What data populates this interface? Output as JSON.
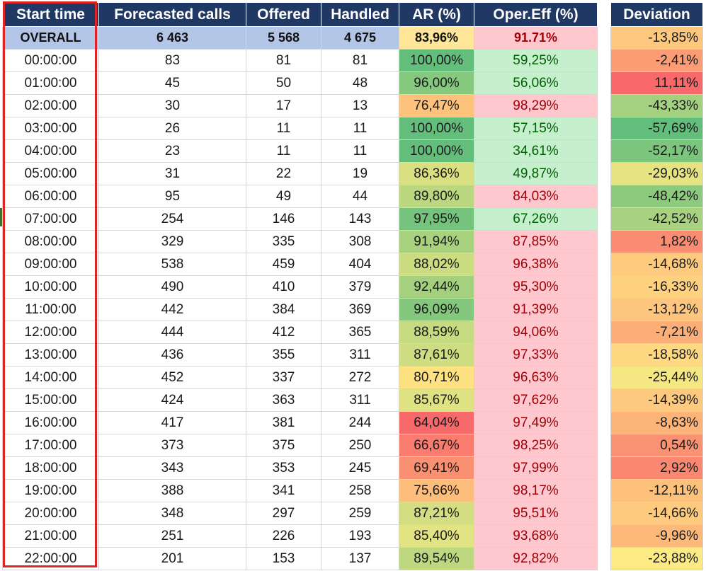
{
  "headers": {
    "start": "Start time",
    "forecast": "Forecasted calls",
    "offered": "Offered",
    "handled": "Handled",
    "ar": "AR (%)",
    "oe": "Oper.Eff (%)",
    "dev": "Deviation"
  },
  "overall": {
    "label": "OVERALL",
    "forecast": "6 463",
    "offered": "5 568",
    "handled": "4 675",
    "ar": "83,96%",
    "oe": "91.71%",
    "dev": "-13,85%"
  },
  "rows": [
    {
      "time": "00:00:00",
      "forecast": "83",
      "offered": "81",
      "handled": "81",
      "ar": "100,00%",
      "oe": "59,25%",
      "dev": "-2,41%"
    },
    {
      "time": "01:00:00",
      "forecast": "45",
      "offered": "50",
      "handled": "48",
      "ar": "96,00%",
      "oe": "56,06%",
      "dev": "11,11%"
    },
    {
      "time": "02:00:00",
      "forecast": "30",
      "offered": "17",
      "handled": "13",
      "ar": "76,47%",
      "oe": "98,29%",
      "dev": "-43,33%"
    },
    {
      "time": "03:00:00",
      "forecast": "26",
      "offered": "11",
      "handled": "11",
      "ar": "100,00%",
      "oe": "57,15%",
      "dev": "-57,69%"
    },
    {
      "time": "04:00:00",
      "forecast": "23",
      "offered": "11",
      "handled": "11",
      "ar": "100,00%",
      "oe": "34,61%",
      "dev": "-52,17%"
    },
    {
      "time": "05:00:00",
      "forecast": "31",
      "offered": "22",
      "handled": "19",
      "ar": "86,36%",
      "oe": "49,87%",
      "dev": "-29,03%"
    },
    {
      "time": "06:00:00",
      "forecast": "95",
      "offered": "49",
      "handled": "44",
      "ar": "89,80%",
      "oe": "84,03%",
      "dev": "-48,42%"
    },
    {
      "time": "07:00:00",
      "forecast": "254",
      "offered": "146",
      "handled": "143",
      "ar": "97,95%",
      "oe": "67,26%",
      "dev": "-42,52%"
    },
    {
      "time": "08:00:00",
      "forecast": "329",
      "offered": "335",
      "handled": "308",
      "ar": "91,94%",
      "oe": "87,85%",
      "dev": "1,82%"
    },
    {
      "time": "09:00:00",
      "forecast": "538",
      "offered": "459",
      "handled": "404",
      "ar": "88,02%",
      "oe": "96,38%",
      "dev": "-14,68%"
    },
    {
      "time": "10:00:00",
      "forecast": "490",
      "offered": "410",
      "handled": "379",
      "ar": "92,44%",
      "oe": "95,30%",
      "dev": "-16,33%"
    },
    {
      "time": "11:00:00",
      "forecast": "442",
      "offered": "384",
      "handled": "369",
      "ar": "96,09%",
      "oe": "91,39%",
      "dev": "-13,12%"
    },
    {
      "time": "12:00:00",
      "forecast": "444",
      "offered": "412",
      "handled": "365",
      "ar": "88,59%",
      "oe": "94,06%",
      "dev": "-7,21%"
    },
    {
      "time": "13:00:00",
      "forecast": "436",
      "offered": "355",
      "handled": "311",
      "ar": "87,61%",
      "oe": "97,33%",
      "dev": "-18,58%"
    },
    {
      "time": "14:00:00",
      "forecast": "452",
      "offered": "337",
      "handled": "272",
      "ar": "80,71%",
      "oe": "96,63%",
      "dev": "-25,44%"
    },
    {
      "time": "15:00:00",
      "forecast": "424",
      "offered": "363",
      "handled": "311",
      "ar": "85,67%",
      "oe": "97,62%",
      "dev": "-14,39%"
    },
    {
      "time": "16:00:00",
      "forecast": "417",
      "offered": "381",
      "handled": "244",
      "ar": "64,04%",
      "oe": "97,49%",
      "dev": "-8,63%"
    },
    {
      "time": "17:00:00",
      "forecast": "373",
      "offered": "375",
      "handled": "250",
      "ar": "66,67%",
      "oe": "98,25%",
      "dev": "0,54%"
    },
    {
      "time": "18:00:00",
      "forecast": "343",
      "offered": "353",
      "handled": "245",
      "ar": "69,41%",
      "oe": "97,99%",
      "dev": "2,92%"
    },
    {
      "time": "19:00:00",
      "forecast": "388",
      "offered": "341",
      "handled": "258",
      "ar": "75,66%",
      "oe": "98,17%",
      "dev": "-12,11%"
    },
    {
      "time": "20:00:00",
      "forecast": "348",
      "offered": "297",
      "handled": "259",
      "ar": "87,21%",
      "oe": "95,51%",
      "dev": "-14,66%"
    },
    {
      "time": "21:00:00",
      "forecast": "251",
      "offered": "226",
      "handled": "193",
      "ar": "85,40%",
      "oe": "93,68%",
      "dev": "-9,96%"
    },
    {
      "time": "22:00:00",
      "forecast": "201",
      "offered": "153",
      "handled": "137",
      "ar": "89,54%",
      "oe": "92,82%",
      "dev": "-23,88%"
    }
  ],
  "colors": {
    "header_bg": "#1f3864",
    "overall_bg": "#b4c6e7",
    "oe_bad_bg": "#ffc7ce",
    "oe_bad_text": "#9c0006",
    "oe_good_bg": "#c6efce",
    "oe_good_text": "#006100",
    "highlight_border": "#e02424"
  }
}
